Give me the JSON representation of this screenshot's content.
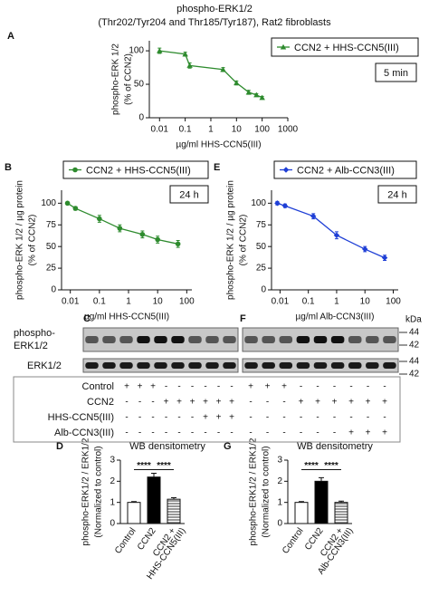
{
  "figure": {
    "title": "phospho-ERK1/2",
    "subtitle": "(Thr202/Tyr204 and Thr185/Tyr187), Rat2 fibroblasts"
  },
  "chart_data": [
    {
      "type": "line",
      "panel": "A",
      "xscale": "log",
      "marker": "triangle",
      "color": "#2e8b2e",
      "series": [
        {
          "name": "CCN2 + HHS-CCN5(III)",
          "color": "#2e8b2e",
          "x": [
            0.01,
            0.1,
            0.15,
            3,
            10,
            30,
            60,
            100
          ],
          "values": [
            100,
            95,
            78,
            72,
            52,
            38,
            34,
            30
          ],
          "errors": [
            4,
            3,
            4,
            3,
            3,
            3,
            2,
            2
          ]
        }
      ],
      "box_label": "5 min",
      "ylabel": [
        "phospho-ERK 1/2",
        "(% of CCN2)"
      ],
      "xlabel": "µg/ml HHS-CCN5(III)",
      "xlim": [
        0.004,
        1000
      ],
      "xticks": [
        0.01,
        0.1,
        1,
        10,
        100,
        1000
      ],
      "ylim": [
        0,
        115
      ],
      "yticks": [
        0,
        50,
        100
      ]
    },
    {
      "type": "line",
      "panel": "B",
      "xscale": "log",
      "marker": "circle",
      "series": [
        {
          "name": "CCN2 + HHS-CCN5(III)",
          "color": "#2e8b2e",
          "x": [
            0.008,
            0.015,
            0.1,
            0.5,
            3,
            10,
            50
          ],
          "values": [
            100,
            94,
            82,
            71,
            64,
            58,
            53
          ],
          "errors": [
            1,
            2,
            4,
            4,
            4,
            4,
            4
          ]
        }
      ],
      "box_label": "24 h",
      "ylabel": [
        "phospho-ERK 1/2 / µg protein",
        "(% of CCN2)"
      ],
      "xlabel": "µg/ml HHS-CCN5(III)",
      "xlim": [
        0.005,
        150
      ],
      "xticks": [
        0.01,
        0.1,
        1,
        10,
        100
      ],
      "ylim": [
        0,
        115
      ],
      "yticks": [
        0,
        25,
        50,
        75,
        100
      ]
    },
    {
      "type": "line",
      "panel": "E",
      "xscale": "log",
      "marker": "diamond",
      "series": [
        {
          "name": "CCN2 + Alb-CCN3(III)",
          "color": "#1f3fd6",
          "x": [
            0.008,
            0.015,
            0.15,
            1,
            10,
            50
          ],
          "values": [
            100,
            97,
            85,
            63,
            47,
            37
          ],
          "errors": [
            2,
            2,
            3,
            4,
            3,
            3
          ]
        }
      ],
      "box_label": "24 h",
      "ylabel": [
        "phospho-ERK 1/2 / µg protein",
        "(% of CCN2)"
      ],
      "xlabel": "µg/ml Alb-CCN3(III)",
      "xlim": [
        0.005,
        150
      ],
      "xticks": [
        0.01,
        0.1,
        1,
        10,
        100
      ],
      "ylim": [
        0,
        115
      ],
      "yticks": [
        0,
        25,
        50,
        75,
        100
      ]
    },
    {
      "type": "bar",
      "panel": "D",
      "title": "WB densitometry",
      "ylabel": [
        "phospho-ERK1/2 / ERK1/2",
        "(Normalized to control)"
      ],
      "categories": [
        [
          "Control"
        ],
        [
          "CCN2"
        ],
        [
          "CCN2 +",
          "HHS-CCN5(III)"
        ]
      ],
      "values": [
        1,
        2.2,
        1.15
      ],
      "errors": [
        0.04,
        0.18,
        0.07
      ],
      "colors": [
        "#ffffff",
        "#000000",
        "#999999"
      ],
      "hatch": [
        false,
        false,
        true
      ],
      "annotations": [
        "****",
        "****"
      ],
      "ylim": [
        0,
        3
      ],
      "yticks": [
        0,
        1,
        2,
        3
      ]
    },
    {
      "type": "bar",
      "panel": "G",
      "title": "WB densitometry",
      "ylabel": [
        "phospho-ERK1/2 / ERK1/2",
        "(Normalized to control)"
      ],
      "categories": [
        [
          "Control"
        ],
        [
          "CCN2"
        ],
        [
          "CCN2 +",
          "Alb-CCN3(III)"
        ]
      ],
      "values": [
        1,
        2.0,
        1.0
      ],
      "errors": [
        0.04,
        0.17,
        0.06
      ],
      "colors": [
        "#ffffff",
        "#000000",
        "#999999"
      ],
      "hatch": [
        false,
        false,
        true
      ],
      "annotations": [
        "****",
        "****"
      ],
      "ylim": [
        0,
        3
      ],
      "yticks": [
        0,
        1,
        2,
        3
      ]
    }
  ],
  "blots": {
    "panels": [
      "C",
      "F"
    ],
    "row_labels": [
      "phospho-",
      "ERK1/2",
      "ERK1/2"
    ],
    "kda": "kDa",
    "markers": [
      "44",
      "42",
      "44",
      "42"
    ],
    "conditions": {
      "names": [
        "Control",
        "CCN2",
        "HHS-CCN5(III)",
        "Alb-CCN3(III)"
      ],
      "left": [
        [
          "+",
          "+",
          "+",
          "-",
          "-",
          "-",
          "-",
          "-",
          "-"
        ],
        [
          "-",
          "-",
          "-",
          "+",
          "+",
          "+",
          "+",
          "+",
          "+"
        ],
        [
          "-",
          "-",
          "-",
          "-",
          "-",
          "-",
          "+",
          "+",
          "+"
        ],
        [
          "-",
          "-",
          "-",
          "-",
          "-",
          "-",
          "-",
          "-",
          "-"
        ]
      ],
      "right": [
        [
          "+",
          "+",
          "+",
          "-",
          "-",
          "-",
          "-",
          "-",
          "-"
        ],
        [
          "-",
          "-",
          "-",
          "+",
          "+",
          "+",
          "+",
          "+",
          "+"
        ],
        [
          "-",
          "-",
          "-",
          "-",
          "-",
          "-",
          "-",
          "-",
          "-"
        ],
        [
          "-",
          "-",
          "-",
          "-",
          "-",
          "-",
          "+",
          "+",
          "+"
        ]
      ]
    }
  }
}
